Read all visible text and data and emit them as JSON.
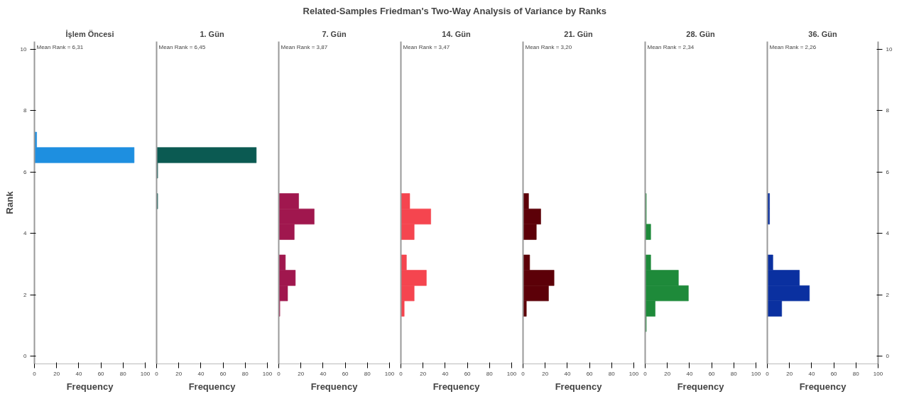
{
  "chart_data": [
    {
      "type": "other",
      "title": "Related-Samples Friedman's Two-Way Analysis of Variance by Ranks"
    },
    {
      "type": "histogram",
      "orientation": "horizontal",
      "title": "İşlem Öncesi",
      "xlabel": "Frequency",
      "ylabel": "Rank",
      "annotations": [
        "Mean Rank = 6,31"
      ],
      "color": "#1e8fe0",
      "bins": [
        7.3,
        6.8,
        6.3,
        5.8,
        5.3,
        4.8,
        4.3,
        3.8,
        3.3,
        2.8,
        2.3,
        1.8,
        1.3,
        0.8
      ],
      "values": [
        2,
        90,
        0,
        0,
        0,
        0,
        0,
        0,
        0,
        0,
        0,
        0,
        0
      ],
      "xlim": [
        0,
        100
      ],
      "xticks": [
        0,
        20,
        40,
        60,
        80,
        100
      ],
      "ylim": [
        -0.25,
        10.25
      ],
      "yticks": [
        0,
        2,
        4,
        6,
        8,
        10
      ]
    },
    {
      "type": "histogram",
      "orientation": "horizontal",
      "title": "1. Gün",
      "xlabel": "Frequency",
      "annotations": [
        "Mean Rank = 6,45"
      ],
      "color": "#0b5a52",
      "bins": [
        7.3,
        6.8,
        6.3,
        5.8,
        5.3,
        4.8,
        4.3,
        3.8,
        3.3,
        2.8,
        2.3,
        1.8,
        1.3,
        0.8
      ],
      "values": [
        0,
        90,
        1,
        0,
        1,
        0,
        0,
        0,
        0,
        0,
        0,
        0,
        0
      ],
      "xlim": [
        0,
        100
      ],
      "xticks": [
        0,
        20,
        40,
        60,
        80,
        100
      ],
      "ylim": [
        -0.25,
        10.25
      ],
      "yticks": [
        0,
        2,
        4,
        6,
        8,
        10
      ],
      "tick_labels": "x"
    },
    {
      "type": "histogram",
      "orientation": "horizontal",
      "title": "7. Gün",
      "xlabel": "Frequency",
      "annotations": [
        "Mean Rank = 3,87"
      ],
      "color": "#a0174e",
      "bins": [
        7.3,
        6.8,
        6.3,
        5.8,
        5.3,
        4.8,
        4.3,
        3.8,
        3.3,
        2.8,
        2.3,
        1.8,
        1.3,
        0.8
      ],
      "values": [
        0,
        0,
        0,
        0,
        18,
        32,
        14,
        0,
        6,
        15,
        8,
        1,
        0
      ],
      "xlim": [
        0,
        100
      ],
      "xticks": [
        0,
        20,
        40,
        60,
        80,
        100
      ],
      "ylim": [
        -0.25,
        10.25
      ],
      "yticks": [
        0,
        2,
        4,
        6,
        8,
        10
      ],
      "tick_labels": "x"
    },
    {
      "type": "histogram",
      "orientation": "horizontal",
      "title": "14. Gün",
      "xlabel": "Frequency",
      "annotations": [
        "Mean Rank = 3,47"
      ],
      "color": "#f5454f",
      "bins": [
        7.3,
        6.8,
        6.3,
        5.8,
        5.3,
        4.8,
        4.3,
        3.8,
        3.3,
        2.8,
        2.3,
        1.8,
        1.3,
        0.8
      ],
      "values": [
        0,
        0,
        0,
        0,
        8,
        27,
        12,
        0,
        5,
        23,
        12,
        3,
        0
      ],
      "xlim": [
        0,
        100
      ],
      "xticks": [
        0,
        20,
        40,
        60,
        80,
        100
      ],
      "ylim": [
        -0.25,
        10.25
      ],
      "yticks": [
        0,
        2,
        4,
        6,
        8,
        10
      ],
      "tick_labels": "x"
    },
    {
      "type": "histogram",
      "orientation": "horizontal",
      "title": "21. Gün",
      "xlabel": "Frequency",
      "annotations": [
        "Mean Rank = 3,20"
      ],
      "color": "#5c0008",
      "bins": [
        7.3,
        6.8,
        6.3,
        5.8,
        5.3,
        4.8,
        4.3,
        3.8,
        3.3,
        2.8,
        2.3,
        1.8,
        1.3,
        0.8
      ],
      "values": [
        0,
        0,
        0,
        0,
        5,
        16,
        12,
        0,
        6,
        28,
        23,
        3,
        0
      ],
      "xlim": [
        0,
        100
      ],
      "xticks": [
        0,
        20,
        40,
        60,
        80,
        100
      ],
      "ylim": [
        -0.25,
        10.25
      ],
      "yticks": [
        0,
        2,
        4,
        6,
        8,
        10
      ],
      "tick_labels": "x"
    },
    {
      "type": "histogram",
      "orientation": "horizontal",
      "title": "28. Gün",
      "xlabel": "Frequency",
      "annotations": [
        "Mean Rank = 2,34"
      ],
      "color": "#1e8a3a",
      "bins": [
        7.3,
        6.8,
        6.3,
        5.8,
        5.3,
        4.8,
        4.3,
        3.8,
        3.3,
        2.8,
        2.3,
        1.8,
        1.3,
        0.8
      ],
      "values": [
        0,
        0,
        0,
        0,
        1,
        1,
        5,
        0,
        5,
        30,
        39,
        9,
        1
      ],
      "xlim": [
        0,
        100
      ],
      "xticks": [
        0,
        20,
        40,
        60,
        80,
        100
      ],
      "ylim": [
        -0.25,
        10.25
      ],
      "yticks": [
        0,
        2,
        4,
        6,
        8,
        10
      ],
      "tick_labels": "x"
    },
    {
      "type": "histogram",
      "orientation": "horizontal",
      "title": "36. Gün",
      "xlabel": "Frequency",
      "annotations": [
        "Mean Rank = 2,26"
      ],
      "color": "#0a30a0",
      "bins": [
        7.3,
        6.8,
        6.3,
        5.8,
        5.3,
        4.8,
        4.3,
        3.8,
        3.3,
        2.8,
        2.3,
        1.8,
        1.3,
        0.8
      ],
      "values": [
        0,
        0,
        0,
        0,
        2,
        2,
        0,
        0,
        5,
        29,
        38,
        13,
        0
      ],
      "xlim": [
        0,
        100
      ],
      "xticks": [
        0,
        20,
        40,
        60,
        80,
        100
      ],
      "ylim": [
        -0.25,
        10.25
      ],
      "yticks": [
        0,
        2,
        4,
        6,
        8,
        10
      ]
    }
  ]
}
